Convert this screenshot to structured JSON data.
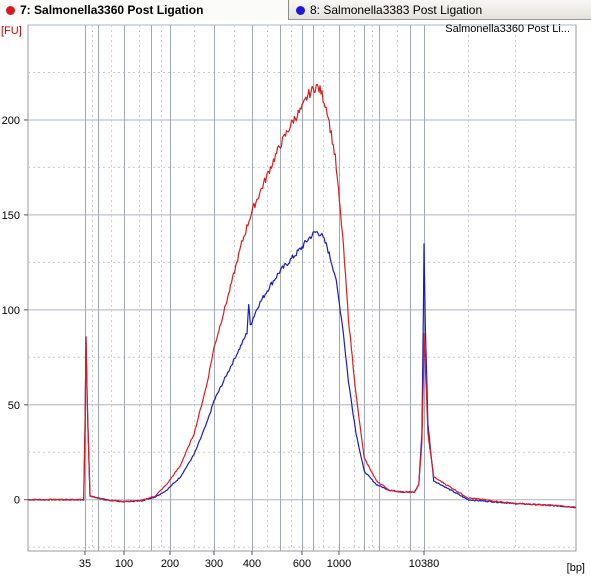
{
  "tabs": [
    {
      "index": "7:",
      "name": "Salmonella3360 Post Ligation",
      "color": "#d61a1a",
      "active": true
    },
    {
      "index": "8:",
      "name": "Salmonella3383 Post Ligation",
      "color": "#1a1ad6",
      "active": false
    }
  ],
  "chart_data": {
    "type": "line",
    "title": "Salmonella3360 Post Li...",
    "ylabel": "[FU]",
    "xlabel": "[bp]",
    "ylim": [
      -27,
      250
    ],
    "xticks": [
      "35",
      "100",
      "200",
      "300",
      "400",
      "600",
      "1000",
      "10380"
    ],
    "xtick_bp": [
      35,
      100,
      200,
      300,
      400,
      600,
      1000,
      10380
    ],
    "ladder_bp": [
      35,
      50,
      100,
      150,
      200,
      300,
      400,
      500,
      600,
      700,
      1000,
      2000,
      3000,
      7000,
      10380
    ],
    "yticks": [
      0,
      50,
      100,
      150,
      200
    ],
    "grid": true,
    "series": [
      {
        "name": "Salmonella3360 Post Ligation",
        "color": "#dd1c1c",
        "x_bp": [
          10,
          30,
          33,
          34,
          35,
          36,
          37,
          40,
          60,
          100,
          130,
          160,
          190,
          220,
          250,
          280,
          300,
          340,
          370,
          400,
          450,
          500,
          560,
          600,
          650,
          700,
          730,
          780,
          850,
          950,
          1100,
          1300,
          1600,
          2000,
          2800,
          4000,
          6000,
          8000,
          9000,
          9800,
          10200,
          10380,
          10600,
          11000,
          12000,
          20000,
          40000,
          70000,
          100000
        ],
        "values": [
          0,
          0,
          0,
          0,
          38,
          86,
          55,
          2,
          0,
          -1,
          -0.5,
          2,
          8,
          18,
          35,
          60,
          80,
          112,
          135,
          152,
          170,
          186,
          200,
          206,
          213,
          216,
          218,
          215,
          205,
          180,
          140,
          95,
          55,
          22,
          10,
          5,
          4,
          4,
          8,
          30,
          65,
          87,
          70,
          35,
          12,
          1,
          -2,
          -3,
          -4
        ]
      },
      {
        "name": "Salmonella3383 Post Ligation",
        "color": "#1a1ac8",
        "x_bp": [
          10,
          30,
          33,
          34,
          35,
          36,
          37,
          40,
          60,
          100,
          130,
          160,
          190,
          220,
          250,
          280,
          300,
          340,
          370,
          385,
          390,
          395,
          420,
          460,
          500,
          560,
          600,
          650,
          700,
          730,
          780,
          850,
          950,
          1100,
          1300,
          1600,
          2000,
          2800,
          4000,
          6000,
          8000,
          9000,
          9800,
          10200,
          10380,
          10600,
          11000,
          12000,
          20000,
          40000,
          70000,
          100000
        ],
        "values": [
          0,
          0,
          0,
          0,
          38,
          86,
          55,
          2,
          0,
          -1,
          -0.5,
          1.5,
          5,
          12,
          24,
          40,
          52,
          70,
          82,
          88,
          103,
          92,
          102,
          112,
          120,
          128,
          133,
          137,
          140,
          141,
          140,
          133,
          118,
          92,
          62,
          35,
          15,
          8,
          5,
          4,
          4,
          8,
          35,
          100,
          135,
          90,
          40,
          10,
          0,
          -2,
          -3,
          -4
        ]
      }
    ]
  }
}
